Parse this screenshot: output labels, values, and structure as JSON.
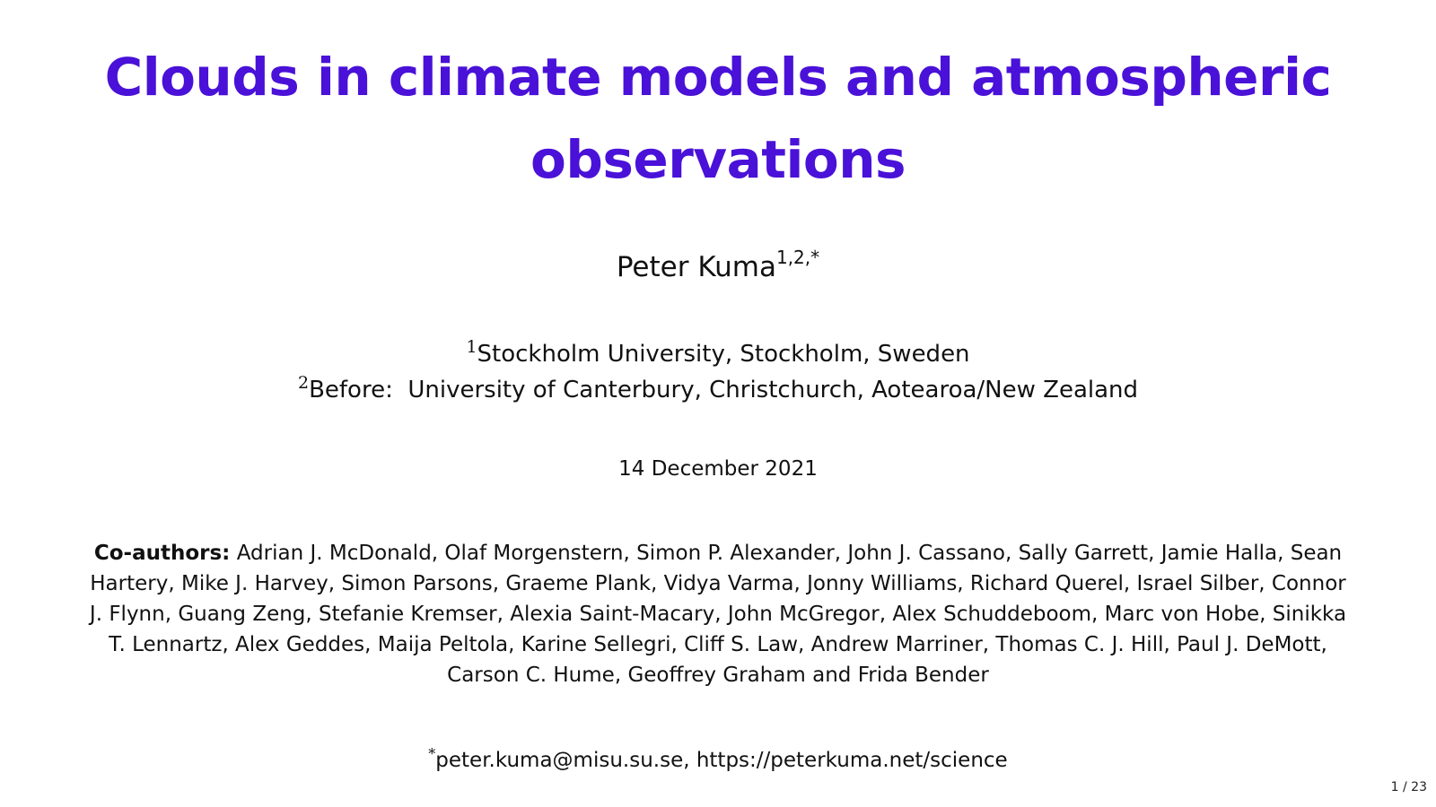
{
  "slide": {
    "title": "Clouds in climate models and atmospheric observations",
    "author": {
      "name": "Peter Kuma",
      "marks": "1,2,*"
    },
    "affiliations": [
      {
        "mark": "1",
        "text": "Stockholm University, Stockholm, Sweden"
      },
      {
        "mark": "2",
        "text": "Before:  University of Canterbury, Christchurch, Aotearoa/New Zealand"
      }
    ],
    "date": "14 December 2021",
    "coauthors": {
      "label": "Co-authors:",
      "names": "Adrian J. McDonald, Olaf Morgenstern, Simon P. Alexander, John J. Cassano, Sally Garrett, Jamie Halla, Sean Hartery, Mike J. Harvey, Simon Parsons, Graeme Plank, Vidya Varma, Jonny Williams, Richard Querel, Israel Silber, Connor J. Flynn, Guang Zeng, Stefanie Kremser, Alexia Saint-Macary, John McGregor, Alex Schuddeboom, Marc von Hobe, Sinikka T. Lennartz, Alex Geddes, Maija Peltola, Karine Sellegri, Cliff S. Law, Andrew Marriner, Thomas C. J. Hill, Paul J. DeMott, Carson C. Hume, Geoffrey Graham and Frida Bender"
    },
    "contact": {
      "mark": "*",
      "text": "peter.kuma@misu.su.se, https://peterkuma.net/science"
    },
    "page_number": "1 / 23"
  },
  "colors": {
    "title": "#4a11d8",
    "text": "#111111",
    "background": "#ffffff"
  }
}
